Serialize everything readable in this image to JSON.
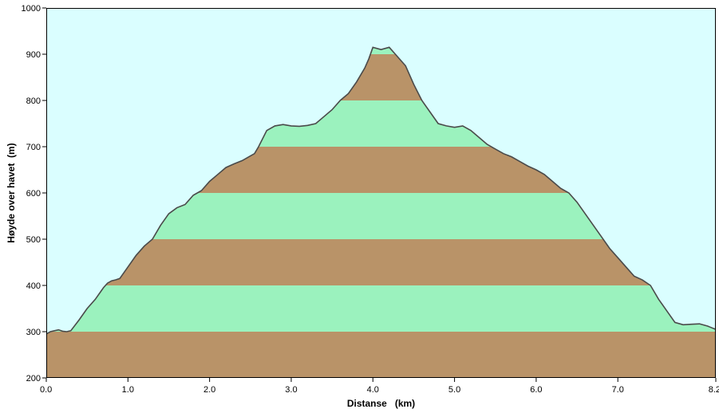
{
  "chart_data": {
    "type": "area",
    "xlabel": "Distanse   (km)",
    "ylabel": "Høyde over havet  (m)",
    "xlim": [
      0.0,
      8.2
    ],
    "ylim": [
      200,
      1000
    ],
    "x_ticks": [
      "0.0",
      "1.0",
      "2.0",
      "3.0",
      "4.0",
      "5.0",
      "6.0",
      "7.0",
      "8.2"
    ],
    "x_tick_values": [
      0.0,
      1.0,
      2.0,
      3.0,
      4.0,
      5.0,
      6.0,
      7.0,
      8.2
    ],
    "y_ticks": [
      "200",
      "300",
      "400",
      "500",
      "600",
      "700",
      "800",
      "900",
      "1000"
    ],
    "y_tick_values": [
      200,
      300,
      400,
      500,
      600,
      700,
      800,
      900,
      1000
    ],
    "band_size": 100,
    "grid": false,
    "colors": {
      "sky": "#dafeff",
      "band_brown": "#b99368",
      "band_green": "#9bf2be",
      "profile_line": "#4a4a4a"
    },
    "series": [
      {
        "x": [
          0.0,
          0.05,
          0.1,
          0.15,
          0.2,
          0.25,
          0.3,
          0.4,
          0.5,
          0.6,
          0.7,
          0.75,
          0.8,
          0.85,
          0.9,
          1.0,
          1.1,
          1.2,
          1.3,
          1.4,
          1.5,
          1.6,
          1.7,
          1.8,
          1.85,
          1.9,
          2.0,
          2.1,
          2.2,
          2.3,
          2.4,
          2.5,
          2.55,
          2.6,
          2.7,
          2.8,
          2.9,
          3.0,
          3.1,
          3.2,
          3.3,
          3.4,
          3.5,
          3.6,
          3.7,
          3.8,
          3.9,
          3.95,
          4.0,
          4.1,
          4.2,
          4.3,
          4.4,
          4.5,
          4.6,
          4.7,
          4.8,
          4.9,
          5.0,
          5.1,
          5.2,
          5.3,
          5.4,
          5.5,
          5.6,
          5.7,
          5.8,
          5.9,
          6.0,
          6.1,
          6.2,
          6.3,
          6.4,
          6.5,
          6.6,
          6.7,
          6.8,
          6.9,
          7.0,
          7.1,
          7.2,
          7.3,
          7.4,
          7.5,
          7.6,
          7.7,
          7.8,
          7.9,
          8.0,
          8.1,
          8.2
        ],
        "y": [
          295,
          300,
          302,
          304,
          301,
          300,
          302,
          325,
          350,
          370,
          395,
          405,
          410,
          412,
          415,
          440,
          465,
          485,
          500,
          530,
          555,
          568,
          575,
          595,
          600,
          605,
          625,
          640,
          655,
          663,
          670,
          680,
          685,
          700,
          735,
          745,
          748,
          745,
          744,
          746,
          750,
          765,
          780,
          800,
          815,
          840,
          870,
          890,
          915,
          910,
          915,
          895,
          875,
          835,
          800,
          775,
          750,
          745,
          742,
          745,
          735,
          720,
          705,
          695,
          685,
          678,
          668,
          658,
          650,
          640,
          625,
          610,
          600,
          580,
          555,
          530,
          505,
          480,
          460,
          440,
          420,
          412,
          400,
          370,
          345,
          320,
          315,
          316,
          317,
          312,
          305
        ]
      }
    ]
  }
}
